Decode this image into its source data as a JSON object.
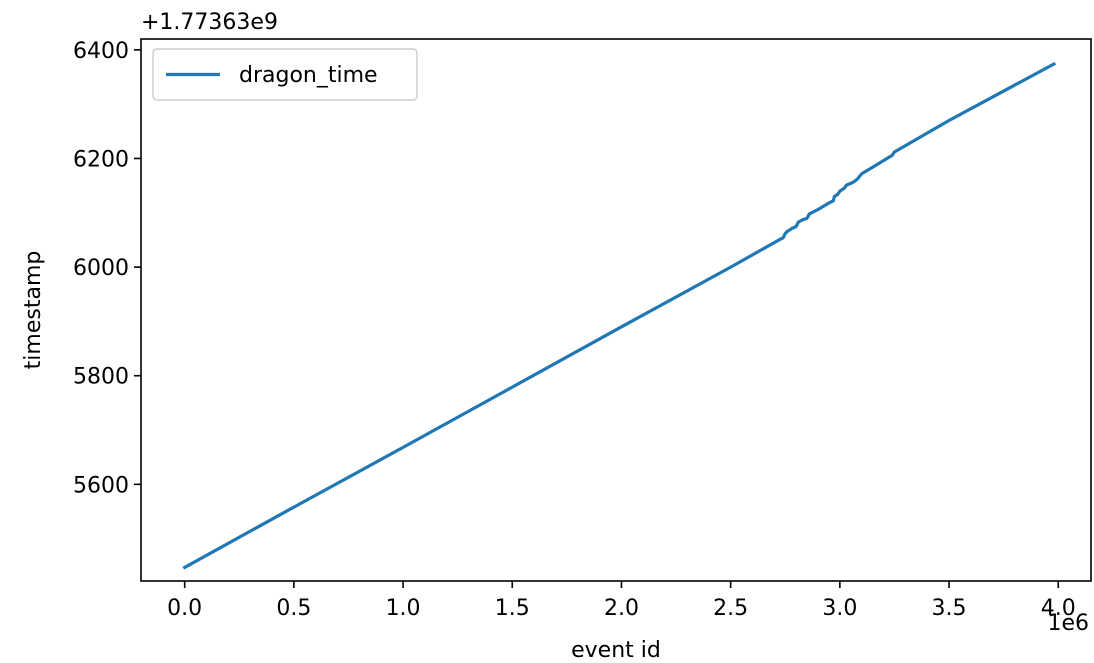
{
  "chart_data": {
    "type": "line",
    "title": "",
    "xlabel": "event id",
    "ylabel": "timestamp",
    "x_offset_text": "1e6",
    "y_offset_text": "+1.77363e9",
    "xlim": [
      -0.2,
      4.15
    ],
    "ylim": [
      5422,
      6420
    ],
    "x_ticks": [
      0.0,
      0.5,
      1.0,
      1.5,
      2.0,
      2.5,
      3.0,
      3.5,
      4.0
    ],
    "x_tick_labels": [
      "0.0",
      "0.5",
      "1.0",
      "1.5",
      "2.0",
      "2.5",
      "3.0",
      "3.5",
      "4.0"
    ],
    "y_ticks": [
      5600,
      5800,
      6000,
      6200,
      6400
    ],
    "y_tick_labels": [
      "5600",
      "5800",
      "6000",
      "6200",
      "6400"
    ],
    "grid": false,
    "legend_position": "upper-left",
    "series": [
      {
        "name": "dragon_time",
        "color": "#1f77b4",
        "x": [
          0.0,
          0.5,
          1.0,
          1.5,
          2.0,
          2.5,
          2.73,
          2.74,
          2.75,
          2.76,
          2.78,
          2.8,
          2.81,
          2.83,
          2.85,
          2.86,
          2.9,
          2.95,
          2.97,
          2.975,
          2.99,
          3.0,
          3.02,
          3.03,
          3.06,
          3.08,
          3.1,
          3.15,
          3.24,
          3.25,
          3.5,
          3.98
        ],
        "y": [
          5447,
          5558,
          5668,
          5779,
          5890,
          6000,
          6052,
          6054,
          6062,
          6066,
          6071,
          6075,
          6083,
          6087,
          6090,
          6098,
          6106,
          6118,
          6122,
          6130,
          6134,
          6140,
          6145,
          6151,
          6156,
          6162,
          6172,
          6184,
          6206,
          6212,
          6270,
          6374
        ]
      }
    ]
  }
}
